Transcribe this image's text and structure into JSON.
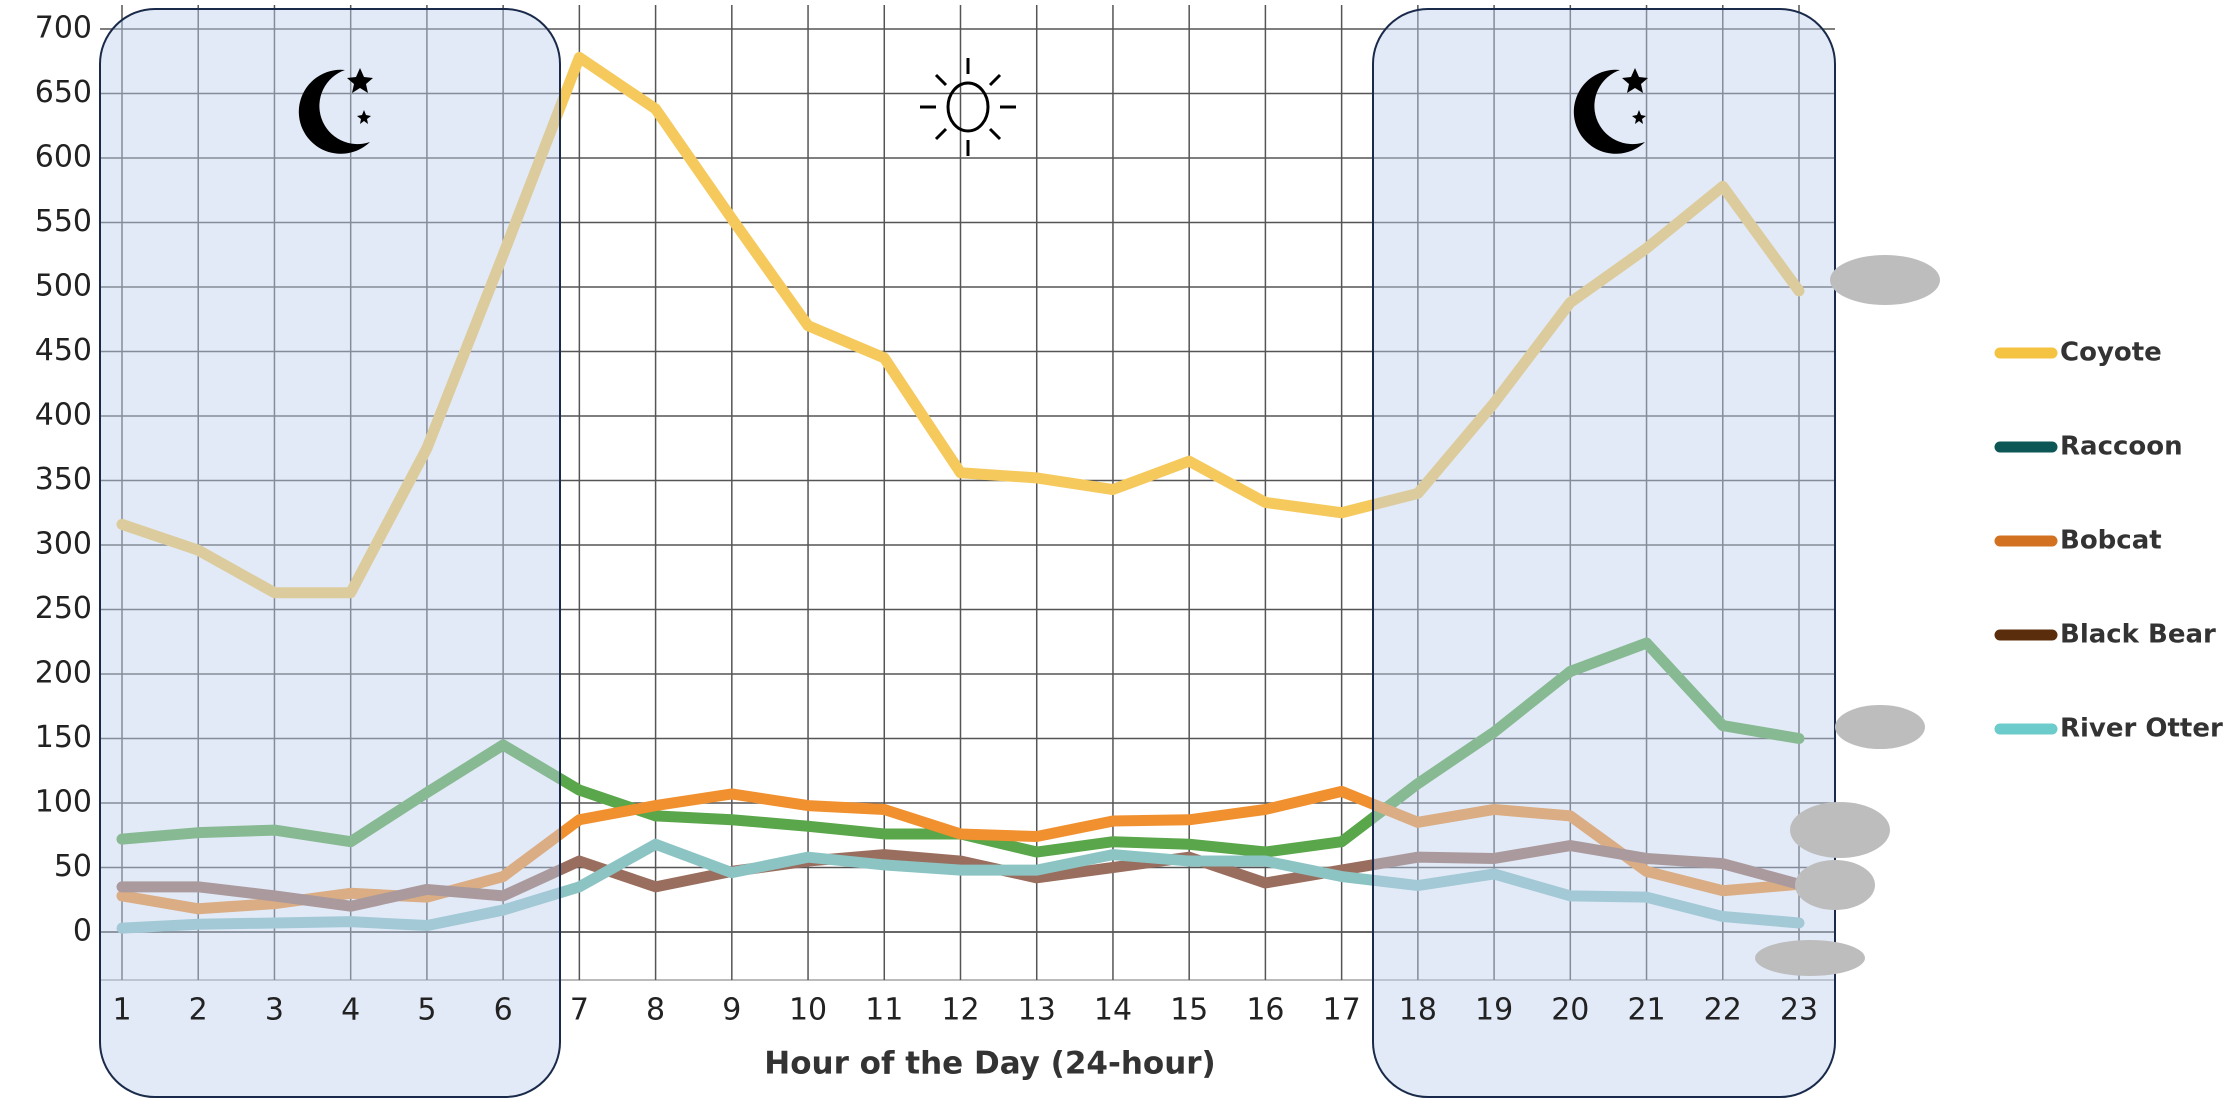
{
  "chart_data": {
    "type": "line",
    "x_label": "Hour of the Day (24-hour)",
    "categories": [
      "1",
      "2",
      "3",
      "4",
      "5",
      "6",
      "7",
      "8",
      "9",
      "10",
      "11",
      "12",
      "13",
      "14",
      "15",
      "16",
      "17",
      "18",
      "19",
      "20",
      "21",
      "22",
      "23"
    ],
    "ylim": [
      0,
      700
    ],
    "yticks": [
      0,
      50,
      100,
      150,
      200,
      250,
      300,
      350,
      400,
      450,
      500,
      550,
      600,
      650,
      700
    ],
    "grid": true,
    "legend": "right",
    "series": [
      {
        "name": "Coyote",
        "color": "#f5c95c",
        "legend_color": "#f5c342",
        "values": [
          316,
          296,
          263,
          263,
          375,
          525,
          678,
          638,
          553,
          470,
          445,
          356,
          352,
          343,
          365,
          333,
          325,
          340,
          410,
          488,
          530,
          578,
          497
        ]
      },
      {
        "name": "Raccoon",
        "color": "#5aa64a",
        "legend_color": "#0d5656",
        "values": [
          72,
          77,
          79,
          70,
          108,
          145,
          110,
          90,
          87,
          82,
          76,
          76,
          62,
          70,
          68,
          62,
          70,
          115,
          155,
          202,
          224,
          160,
          150
        ]
      },
      {
        "name": "Bobcat",
        "color": "#f0902f",
        "legend_color": "#d2711f",
        "values": [
          28,
          18,
          22,
          30,
          27,
          43,
          87,
          98,
          107,
          98,
          95,
          76,
          74,
          86,
          87,
          95,
          109,
          85,
          95,
          90,
          47,
          32,
          37
        ]
      },
      {
        "name": "Black Bear",
        "color": "#9a6e5e",
        "legend_color": "#5a2d0c",
        "values": [
          35,
          35,
          28,
          20,
          33,
          28,
          55,
          35,
          47,
          55,
          60,
          55,
          42,
          50,
          58,
          38,
          48,
          58,
          57,
          67,
          57,
          53,
          37
        ]
      },
      {
        "name": "River Otter",
        "color": "#8cc4c4",
        "legend_color": "#6ccbcb",
        "values": [
          3,
          6,
          7,
          8,
          5,
          17,
          35,
          68,
          46,
          58,
          52,
          48,
          48,
          60,
          55,
          55,
          43,
          36,
          45,
          28,
          27,
          12,
          7
        ]
      }
    ]
  }
}
